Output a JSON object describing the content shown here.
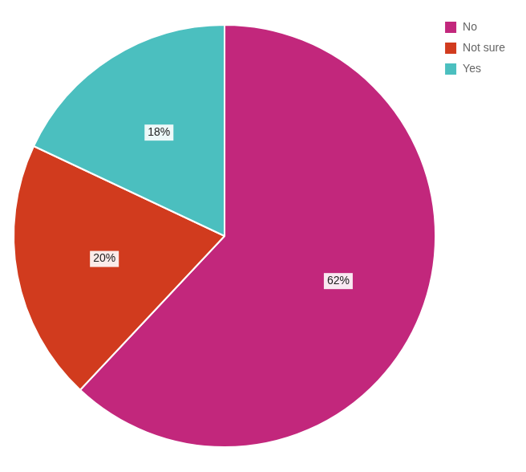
{
  "chart_data": {
    "type": "pie",
    "categories": [
      "No",
      "Not sure",
      "Yes"
    ],
    "values": [
      62,
      20,
      18
    ],
    "value_labels": [
      "62%",
      "20%",
      "18%"
    ],
    "colors": [
      "#c2277c",
      "#d13b1e",
      "#4bbfbf"
    ],
    "data_labels": true,
    "legend": "upper right"
  }
}
